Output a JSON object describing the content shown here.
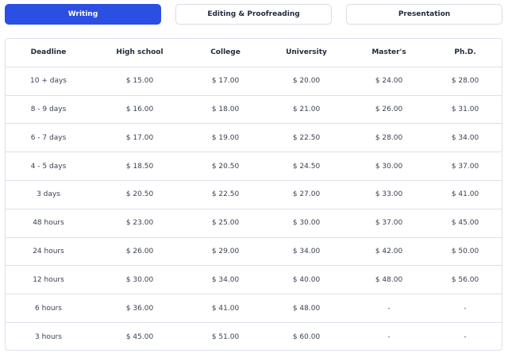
{
  "tabs": [
    "Writing",
    "Editing & Proofreading",
    "Presentation"
  ],
  "table": {
    "header": [
      "Deadline",
      "High school",
      "College",
      "University",
      "Master's",
      "Ph.D."
    ],
    "rows": [
      [
        "10 + days",
        "$ 15.00",
        "$ 17.00",
        "$ 20.00",
        "$ 24.00",
        "$ 28.00"
      ],
      [
        "8 - 9 days",
        "$ 16.00",
        "$ 18.00",
        "$ 21.00",
        "$ 26.00",
        "$ 31.00"
      ],
      [
        "6 - 7 days",
        "$ 17.00",
        "$ 19.00",
        "$ 22.50",
        "$ 28.00",
        "$ 34.00"
      ],
      [
        "4 - 5 days",
        "$ 18.50",
        "$ 20.50",
        "$ 24.50",
        "$ 30.00",
        "$ 37.00"
      ],
      [
        "3 days",
        "$ 20.50",
        "$ 22.50",
        "$ 27.00",
        "$ 33.00",
        "$ 41.00"
      ],
      [
        "48 hours",
        "$ 23.00",
        "$ 25.00",
        "$ 30.00",
        "$ 37.00",
        "$ 45.00"
      ],
      [
        "24 hours",
        "$ 26.00",
        "$ 29.00",
        "$ 34.00",
        "$ 42.00",
        "$ 50.00"
      ],
      [
        "12 hours",
        "$ 30.00",
        "$ 34.00",
        "$ 40.00",
        "$ 48.00",
        "$ 56.00"
      ],
      [
        "6 hours",
        "$ 36.00",
        "$ 41.00",
        "$ 48.00",
        "-",
        "-"
      ],
      [
        "3 hours",
        "$ 45.00",
        "$ 51.00",
        "$ 60.00",
        "-",
        "-"
      ]
    ]
  }
}
